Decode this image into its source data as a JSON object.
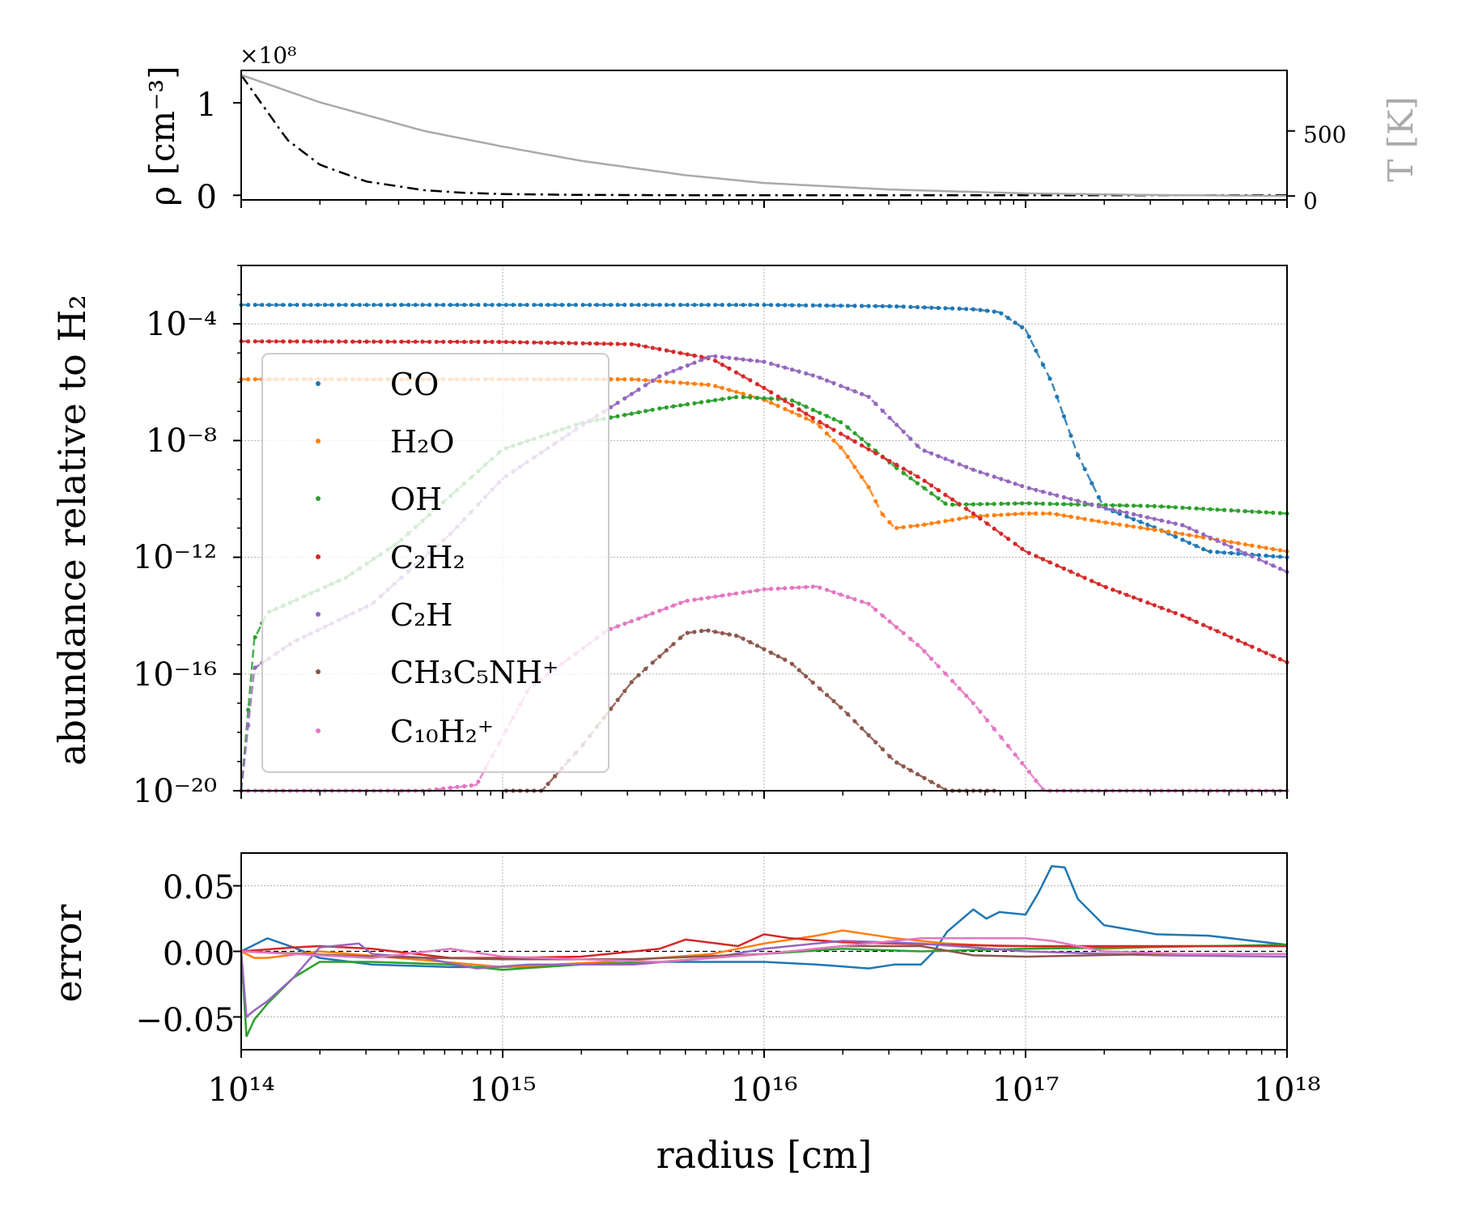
{
  "chart_data": [
    {
      "panel": "density-temperature",
      "type": "line",
      "xscale": "log",
      "xlim": [
        100000000000000.0,
        1e+18
      ],
      "ylabel": "ρ [cm⁻³]",
      "ylabel_right": "T [K]",
      "offset_text": "×10⁸",
      "yticks": [
        "0",
        "1"
      ],
      "yticks_right": [
        "0",
        "500"
      ],
      "ylim": [
        -0.05,
        1.35
      ],
      "ylim_right": [
        -30,
        965
      ],
      "series": [
        {
          "name": "density",
          "style": "dash-dot",
          "color": "#000000",
          "x": [
            100000000000000.0,
            150000000000000.0,
            200000000000000.0,
            300000000000000.0,
            500000000000000.0,
            700000000000000.0,
            1000000000000000.0,
            2000000000000000.0,
            5000000000000000.0,
            1e+16,
            1e+17,
            1e+18
          ],
          "y": [
            1.3,
            0.6,
            0.33,
            0.15,
            0.055,
            0.028,
            0.013,
            0.004,
            0.001,
            0.0003,
            0.0,
            0.0
          ]
        },
        {
          "name": "temperature",
          "style": "solid",
          "color": "#aaaaaa",
          "x": [
            100000000000000.0,
            200000000000000.0,
            500000000000000.0,
            1000000000000000.0,
            2000000000000000.0,
            5000000000000000.0,
            1e+16,
            3e+16,
            1e+17,
            3e+17,
            1e+18
          ],
          "y": [
            930,
            720,
            500,
            380,
            270,
            160,
            100,
            50,
            20,
            8,
            0
          ]
        }
      ]
    },
    {
      "panel": "abundances",
      "type": "scatter",
      "xscale": "log",
      "yscale": "log",
      "xlim": [
        100000000000000.0,
        1e+18
      ],
      "ylim_exp": [
        -20,
        -2
      ],
      "ylabel": "abundance relative to H₂",
      "yticks": [
        "10⁻⁴",
        "10⁻⁸",
        "10⁻¹²",
        "10⁻¹⁶",
        "10⁻²⁰"
      ],
      "series": [
        {
          "name": "CO",
          "color": "#1f77b4",
          "logx": [
            14,
            15,
            16,
            16.5,
            16.8,
            16.9,
            17.0,
            17.1,
            17.2,
            17.3,
            17.5,
            17.7,
            18.0
          ],
          "logy": [
            -3.35,
            -3.35,
            -3.35,
            -3.4,
            -3.5,
            -3.6,
            -4.2,
            -6.0,
            -8.5,
            -10.3,
            -11.0,
            -11.8,
            -12.0
          ]
        },
        {
          "name": "H₂O",
          "color": "#ff7f0e",
          "logx": [
            14,
            15,
            15.5,
            15.8,
            16.0,
            16.2,
            16.3,
            16.4,
            16.45,
            16.5,
            16.6,
            16.8,
            17.0,
            17.1,
            17.3,
            17.6,
            18.0
          ],
          "logy": [
            -5.9,
            -5.9,
            -5.9,
            -6.1,
            -6.6,
            -7.4,
            -8.3,
            -9.6,
            -10.5,
            -11.0,
            -10.9,
            -10.6,
            -10.5,
            -10.5,
            -10.8,
            -11.2,
            -11.8
          ]
        },
        {
          "name": "OH",
          "color": "#2ca02c",
          "logx": [
            14,
            14.05,
            14.1,
            14.2,
            14.4,
            14.6,
            14.8,
            15.0,
            15.3,
            15.6,
            15.9,
            16.1,
            16.3,
            16.5,
            16.7,
            17.0,
            17.5,
            18.0
          ],
          "logy": [
            -20.0,
            -14.8,
            -13.9,
            -13.5,
            -12.7,
            -11.5,
            -9.9,
            -8.3,
            -7.4,
            -6.9,
            -6.5,
            -6.6,
            -7.4,
            -8.9,
            -10.2,
            -10.15,
            -10.25,
            -10.5
          ]
        },
        {
          "name": "C₂H₂",
          "color": "#d62728",
          "logx": [
            14,
            15,
            15.5,
            15.8,
            16.0,
            16.2,
            16.4,
            16.6,
            16.8,
            17.0,
            17.3,
            17.6,
            18.0
          ],
          "logy": [
            -4.6,
            -4.62,
            -4.7,
            -5.2,
            -6.2,
            -7.3,
            -8.3,
            -9.3,
            -10.5,
            -11.8,
            -13.0,
            -14.0,
            -15.6
          ]
        },
        {
          "name": "C₂H",
          "color": "#9467bd",
          "logx": [
            14,
            14.05,
            14.2,
            14.5,
            14.8,
            15.0,
            15.3,
            15.6,
            15.8,
            16.0,
            16.2,
            16.4,
            16.6,
            16.8,
            17.0,
            17.3,
            17.6,
            18.0
          ],
          "logy": [
            -20.0,
            -15.8,
            -14.9,
            -13.6,
            -11.2,
            -9.3,
            -7.5,
            -5.8,
            -5.1,
            -5.3,
            -5.8,
            -6.5,
            -8.3,
            -9.0,
            -9.6,
            -10.3,
            -10.9,
            -12.5
          ]
        },
        {
          "name": "CH₃C₅NH⁺",
          "color": "#8c564b",
          "logx": [
            15.0,
            15.15,
            15.3,
            15.5,
            15.7,
            15.78,
            15.9,
            16.1,
            16.3,
            16.5,
            16.7,
            16.9
          ],
          "logy": [
            -20.0,
            -20.0,
            -18.5,
            -16.2,
            -14.6,
            -14.5,
            -14.7,
            -15.6,
            -17.2,
            -19.0,
            -20.0,
            -20.0
          ]
        },
        {
          "name": "C₁₀H₂⁺",
          "color": "#e377c2",
          "logx": [
            14.0,
            14.7,
            14.9,
            15.1,
            15.4,
            15.7,
            16.0,
            16.2,
            16.4,
            16.6,
            16.8,
            17.0,
            17.07,
            17.2,
            18.0
          ],
          "logy": [
            -20.0,
            -20.0,
            -19.8,
            -16.5,
            -14.5,
            -13.5,
            -13.1,
            -13.0,
            -13.6,
            -15.1,
            -17.0,
            -19.2,
            -20.0,
            -20.0,
            -20.0
          ]
        }
      ],
      "legend": {
        "position": "upper-left",
        "entries": [
          "CO",
          "H₂O",
          "OH",
          "C₂H₂",
          "C₂H",
          "CH₃C₅NH⁺",
          "C₁₀H₂⁺"
        ]
      }
    },
    {
      "panel": "error",
      "type": "line",
      "xscale": "log",
      "xlim": [
        100000000000000.0,
        1e+18
      ],
      "ylim": [
        -0.075,
        0.075
      ],
      "xlabel": "radius [cm]",
      "ylabel": "error",
      "xticks": [
        "10¹⁴",
        "10¹⁵",
        "10¹⁶",
        "10¹⁷",
        "10¹⁸"
      ],
      "yticks": [
        "0.05",
        "0.00",
        "−0.05"
      ],
      "series": [
        {
          "name": "CO",
          "color": "#1f77b4",
          "logx": [
            14,
            14.1,
            14.2,
            14.3,
            14.5,
            14.8,
            15.0,
            15.3,
            15.6,
            16.0,
            16.2,
            16.4,
            16.5,
            16.6,
            16.65,
            16.7,
            16.8,
            16.85,
            16.9,
            17.0,
            17.05,
            17.1,
            17.15,
            17.2,
            17.3,
            17.5,
            17.7,
            18.0
          ],
          "y": [
            0.0,
            0.01,
            0.003,
            -0.005,
            -0.01,
            -0.012,
            -0.012,
            -0.01,
            -0.008,
            -0.008,
            -0.01,
            -0.013,
            -0.01,
            -0.01,
            0.0,
            0.015,
            0.032,
            0.025,
            0.03,
            0.028,
            0.045,
            0.065,
            0.064,
            0.04,
            0.02,
            0.013,
            0.012,
            0.005
          ]
        },
        {
          "name": "H₂O",
          "color": "#ff7f0e",
          "logx": [
            14,
            14.05,
            14.1,
            14.3,
            14.6,
            15.0,
            15.4,
            15.8,
            16.0,
            16.2,
            16.3,
            16.5,
            16.7,
            16.9,
            17.0,
            17.3,
            17.6,
            18.0
          ],
          "y": [
            0.0,
            -0.005,
            -0.005,
            0.0,
            -0.005,
            -0.012,
            -0.008,
            -0.002,
            0.006,
            0.012,
            0.016,
            0.01,
            0.006,
            0.004,
            0.004,
            0.002,
            0.004,
            0.004
          ]
        },
        {
          "name": "OH",
          "color": "#2ca02c",
          "logx": [
            14,
            14.02,
            14.05,
            14.1,
            14.2,
            14.3,
            14.5,
            14.8,
            15.0,
            15.3,
            15.6,
            16.0,
            16.3,
            16.6,
            17.0,
            17.4,
            17.7,
            18.0
          ],
          "y": [
            0.0,
            -0.065,
            -0.052,
            -0.04,
            -0.02,
            -0.008,
            -0.008,
            -0.01,
            -0.014,
            -0.01,
            -0.008,
            -0.002,
            0.002,
            0.0,
            0.002,
            0.003,
            0.004,
            0.005
          ]
        },
        {
          "name": "C₂H₂",
          "color": "#d62728",
          "logx": [
            14,
            14.2,
            14.3,
            14.5,
            14.8,
            15.0,
            15.3,
            15.6,
            15.7,
            15.9,
            16.0,
            16.1,
            16.3,
            16.5,
            16.7,
            17.0,
            17.3,
            17.6,
            18.0
          ],
          "y": [
            0.0,
            0.003,
            0.004,
            0.002,
            -0.005,
            -0.005,
            -0.004,
            0.002,
            0.009,
            0.004,
            0.013,
            0.01,
            0.007,
            0.006,
            0.005,
            0.004,
            0.004,
            0.004,
            0.004
          ]
        },
        {
          "name": "C₂H",
          "color": "#9467bd",
          "logx": [
            14,
            14.02,
            14.05,
            14.1,
            14.2,
            14.3,
            14.45,
            14.5,
            14.7,
            14.9,
            15.1,
            15.5,
            15.8,
            16.0,
            16.3,
            16.6,
            17.0,
            17.5,
            18.0
          ],
          "y": [
            0.0,
            -0.05,
            -0.045,
            -0.038,
            -0.02,
            0.003,
            0.006,
            -0.002,
            -0.005,
            -0.013,
            -0.01,
            -0.01,
            -0.005,
            0.002,
            0.008,
            0.006,
            0.0,
            -0.003,
            -0.004
          ]
        },
        {
          "name": "CH₃C₅NH⁺",
          "color": "#8c564b",
          "logx": [
            14,
            14.5,
            15.0,
            15.5,
            16.0,
            16.3,
            16.6,
            16.8,
            17.0,
            17.5,
            18.0
          ],
          "y": [
            0.0,
            -0.004,
            -0.006,
            -0.006,
            -0.002,
            0.004,
            0.004,
            -0.003,
            -0.004,
            -0.002,
            -0.002
          ]
        },
        {
          "name": "C₁₀H₂⁺",
          "color": "#e377c2",
          "logx": [
            14,
            14.5,
            14.8,
            15.0,
            15.3,
            15.6,
            16.0,
            16.3,
            16.6,
            16.8,
            17.0,
            17.1,
            17.3,
            17.6,
            18.0
          ],
          "y": [
            0.0,
            -0.005,
            0.002,
            -0.004,
            -0.006,
            -0.008,
            -0.002,
            0.004,
            0.01,
            0.01,
            0.01,
            0.008,
            0.0,
            -0.002,
            -0.002
          ]
        }
      ]
    }
  ]
}
